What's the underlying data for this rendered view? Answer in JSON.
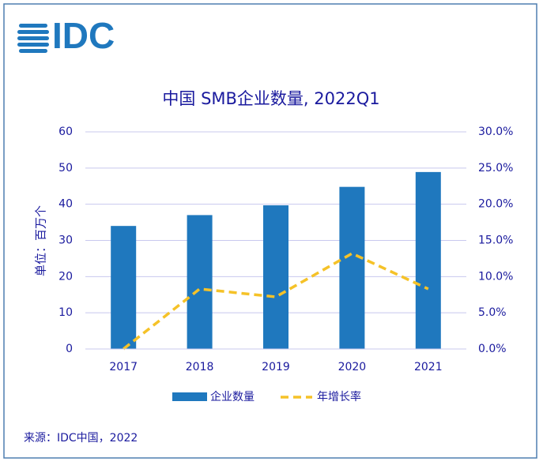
{
  "logo": "IDC",
  "chart_data": {
    "type": "bar_line",
    "title": "中国 SMB企业数量, 2022Q1",
    "ylabel": "单位：百万个",
    "categories": [
      "2017",
      "2018",
      "2019",
      "2020",
      "2021"
    ],
    "series": [
      {
        "name": "企业数量",
        "color": "#1f78be",
        "type": "bar",
        "values": [
          34.0,
          37.0,
          39.7,
          44.8,
          48.9
        ]
      },
      {
        "name": "年增长率",
        "color": "#f5c228",
        "type": "line",
        "axis": "y2",
        "values": [
          0,
          8.3,
          7.2,
          13.2,
          8.3
        ]
      }
    ],
    "ylim": [
      0,
      60
    ],
    "yticks": [
      0,
      10,
      20,
      30,
      40,
      50,
      60
    ],
    "y2lim": [
      0,
      30
    ],
    "y2ticks": [
      {
        "value": 0,
        "label": "0.0%"
      },
      {
        "value": 5,
        "label": "5.0%"
      },
      {
        "value": 10,
        "label": "10.0%"
      },
      {
        "value": 15,
        "label": "15.0%"
      },
      {
        "value": 20,
        "label": "20.0%"
      },
      {
        "value": 25,
        "label": "25.0%"
      },
      {
        "value": 30,
        "label": "30.0%"
      }
    ],
    "grid": true
  },
  "source": "来源：IDC中国，2022"
}
